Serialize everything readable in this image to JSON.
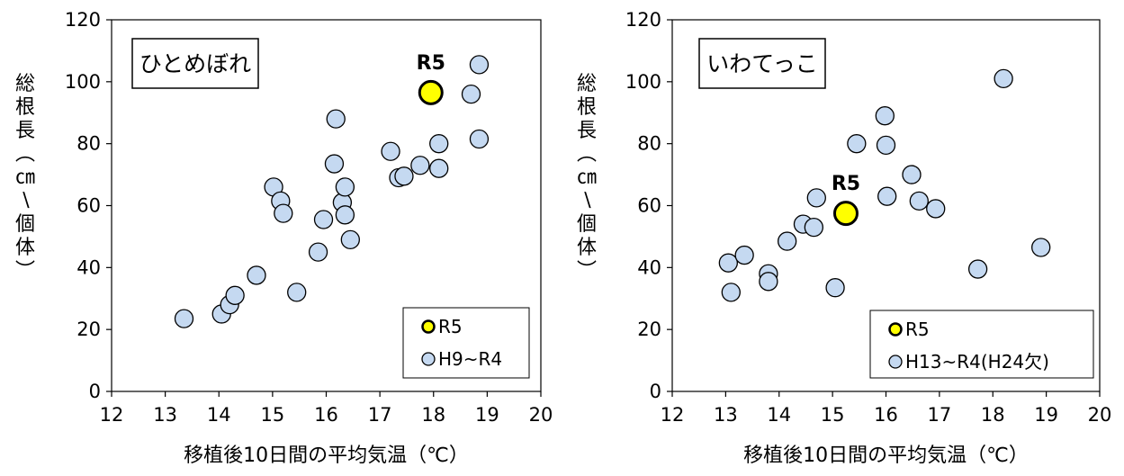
{
  "chart_data": [
    {
      "type": "scatter",
      "variety_label": "ひとめぼれ",
      "xlabel": "移植後10日間の平均気温（℃）",
      "ylabel": "総根長（㎝／個体）",
      "xlim": [
        12,
        20
      ],
      "ylim": [
        0,
        120
      ],
      "xticks": [
        "12",
        "13",
        "14",
        "15",
        "16",
        "17",
        "18",
        "19",
        "20"
      ],
      "yticks": [
        "0",
        "20",
        "40",
        "60",
        "80",
        "100",
        "120"
      ],
      "annotation": "R5",
      "legend_position": "bottom-right",
      "series": [
        {
          "name": "R5",
          "color": "#ffff00",
          "points": [
            [
              17.95,
              96.5
            ]
          ]
        },
        {
          "name": "H9~R4",
          "color": "#c5d9f1",
          "points": [
            [
              13.35,
              23.5
            ],
            [
              14.05,
              25
            ],
            [
              14.2,
              28
            ],
            [
              14.3,
              31
            ],
            [
              14.7,
              37.5
            ],
            [
              15.02,
              66
            ],
            [
              15.15,
              61.5
            ],
            [
              15.2,
              57.5
            ],
            [
              15.45,
              32
            ],
            [
              15.85,
              45
            ],
            [
              15.95,
              55.5
            ],
            [
              16.15,
              73.5
            ],
            [
              16.18,
              88
            ],
            [
              16.3,
              61
            ],
            [
              16.35,
              66
            ],
            [
              16.35,
              57
            ],
            [
              16.45,
              49
            ],
            [
              17.2,
              77.5
            ],
            [
              17.35,
              69
            ],
            [
              17.45,
              69.5
            ],
            [
              17.75,
              73
            ],
            [
              18.1,
              80
            ],
            [
              18.1,
              72
            ],
            [
              18.7,
              96
            ],
            [
              18.85,
              105.5
            ],
            [
              18.85,
              81.5
            ]
          ]
        }
      ]
    },
    {
      "type": "scatter",
      "variety_label": "いわてっこ",
      "xlabel": "移植後10日間の平均気温（℃）",
      "ylabel": "総根長（㎝／個体）",
      "xlim": [
        12,
        20
      ],
      "ylim": [
        0,
        120
      ],
      "xticks": [
        "12",
        "13",
        "14",
        "15",
        "16",
        "17",
        "18",
        "19",
        "20"
      ],
      "yticks": [
        "0",
        "20",
        "40",
        "60",
        "80",
        "100",
        "120"
      ],
      "annotation": "R5",
      "legend_position": "bottom-right",
      "series": [
        {
          "name": "R5",
          "color": "#ffff00",
          "points": [
            [
              15.25,
              57.5
            ]
          ]
        },
        {
          "name": "H13~R4(H24欠)",
          "color": "#c5d9f1",
          "points": [
            [
              13.05,
              41.5
            ],
            [
              13.1,
              32
            ],
            [
              13.35,
              44
            ],
            [
              13.8,
              38
            ],
            [
              13.8,
              35.5
            ],
            [
              14.15,
              48.5
            ],
            [
              14.45,
              54
            ],
            [
              14.65,
              53
            ],
            [
              14.7,
              62.5
            ],
            [
              15.05,
              33.5
            ],
            [
              15.45,
              80
            ],
            [
              15.98,
              89
            ],
            [
              16.0,
              79.5
            ],
            [
              16.02,
              63
            ],
            [
              16.48,
              70
            ],
            [
              16.62,
              61.5
            ],
            [
              16.93,
              59
            ],
            [
              17.72,
              39.5
            ],
            [
              18.2,
              101
            ],
            [
              18.9,
              46.5
            ]
          ]
        }
      ]
    }
  ]
}
